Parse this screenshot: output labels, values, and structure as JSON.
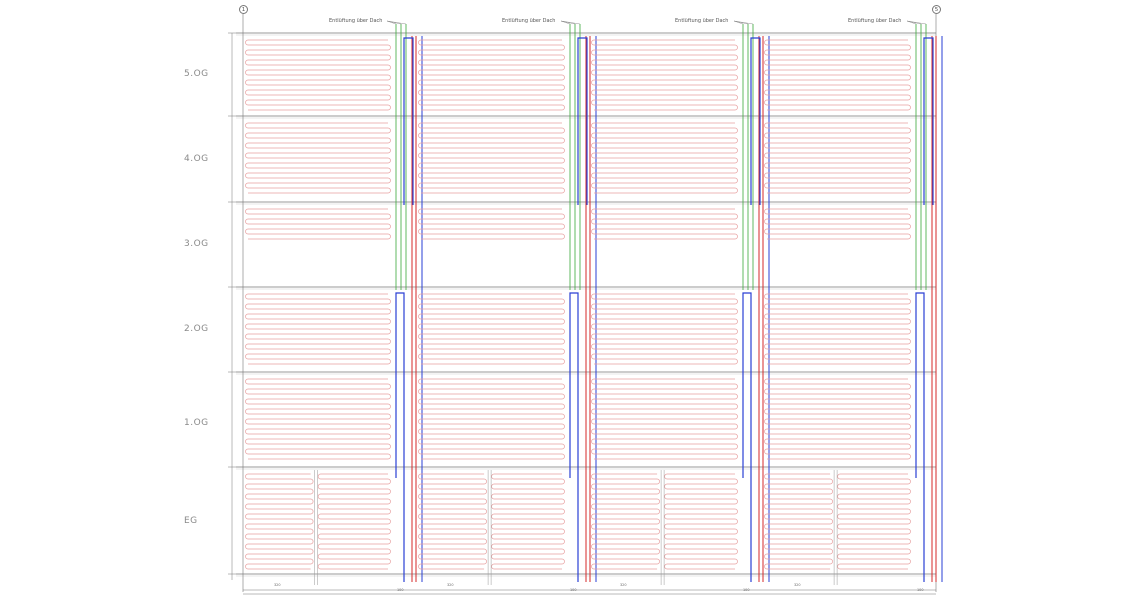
{
  "axes": {
    "left": "1",
    "right": "5"
  },
  "floors": [
    {
      "id": "5og",
      "label": "5.OG"
    },
    {
      "id": "4og",
      "label": "4.OG"
    },
    {
      "id": "3og",
      "label": "3.OG"
    },
    {
      "id": "2og",
      "label": "2.OG"
    },
    {
      "id": "1og",
      "label": "1.OG"
    },
    {
      "id": "eg",
      "label": "EG"
    }
  ],
  "vent_note": "Entlüftung über Dach",
  "bottom_dims": [
    "320",
    "100",
    "320",
    "100",
    "320",
    "100",
    "320",
    "100"
  ],
  "colors": {
    "heating_circuit": "#e8a0a0",
    "supply": "#d42a2a",
    "return": "#2a3fd4",
    "vent": "#3aa83a",
    "grid": "#9a9a9a"
  }
}
